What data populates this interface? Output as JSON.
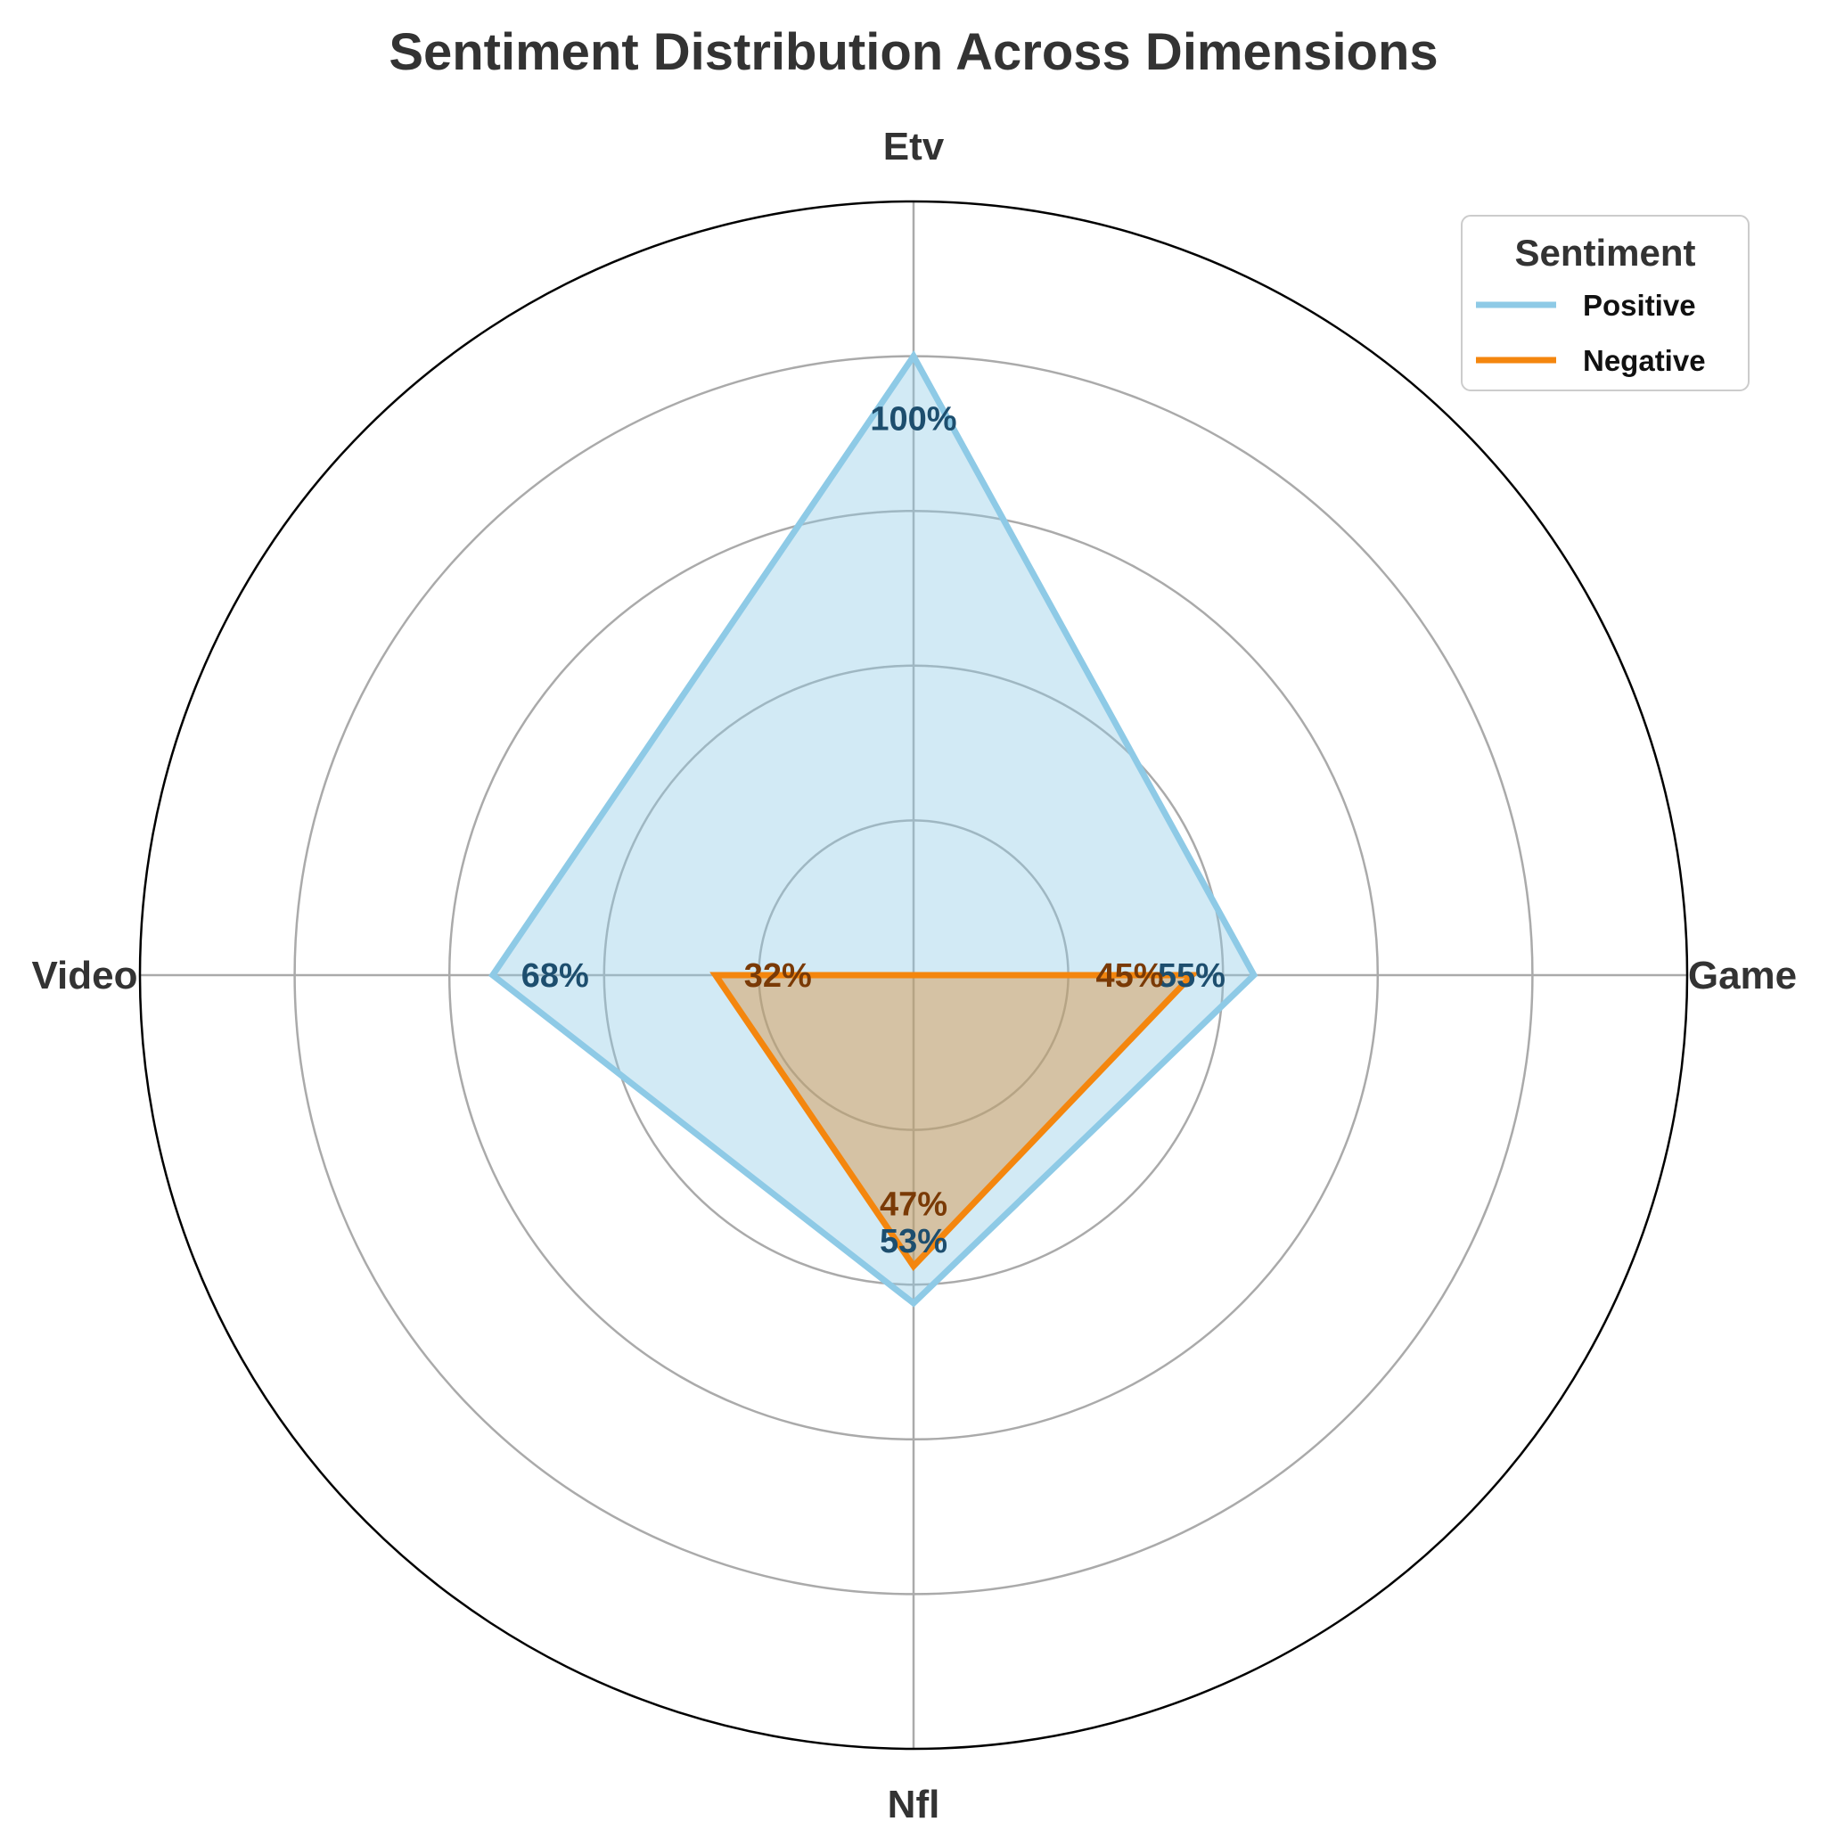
{
  "chart_data": {
    "type": "radar",
    "title": "Sentiment Distribution Across Dimensions",
    "categories": [
      "Etv",
      "Game",
      "Nfl",
      "Video"
    ],
    "rmax": 1.25,
    "ring_values": [
      0.25,
      0.5,
      0.75,
      1.0
    ],
    "grid": true,
    "legend": {
      "title": "Sentiment",
      "placement": "top-right"
    },
    "series": [
      {
        "name": "Positive",
        "values": [
          1.0,
          0.55,
          0.53,
          0.68
        ],
        "labels": [
          "100%",
          "55%",
          "53%",
          "68%"
        ],
        "color": "#8ecae6",
        "fill": "#8ecae6",
        "label_color": "#1d4e6e"
      },
      {
        "name": "Negative",
        "values": [
          0.0,
          0.45,
          0.47,
          0.32
        ],
        "labels": [
          "",
          "45%",
          "47%",
          "32%"
        ],
        "color": "#f4860e",
        "fill": "#d9862a",
        "label_color": "#7a3a06"
      }
    ]
  }
}
